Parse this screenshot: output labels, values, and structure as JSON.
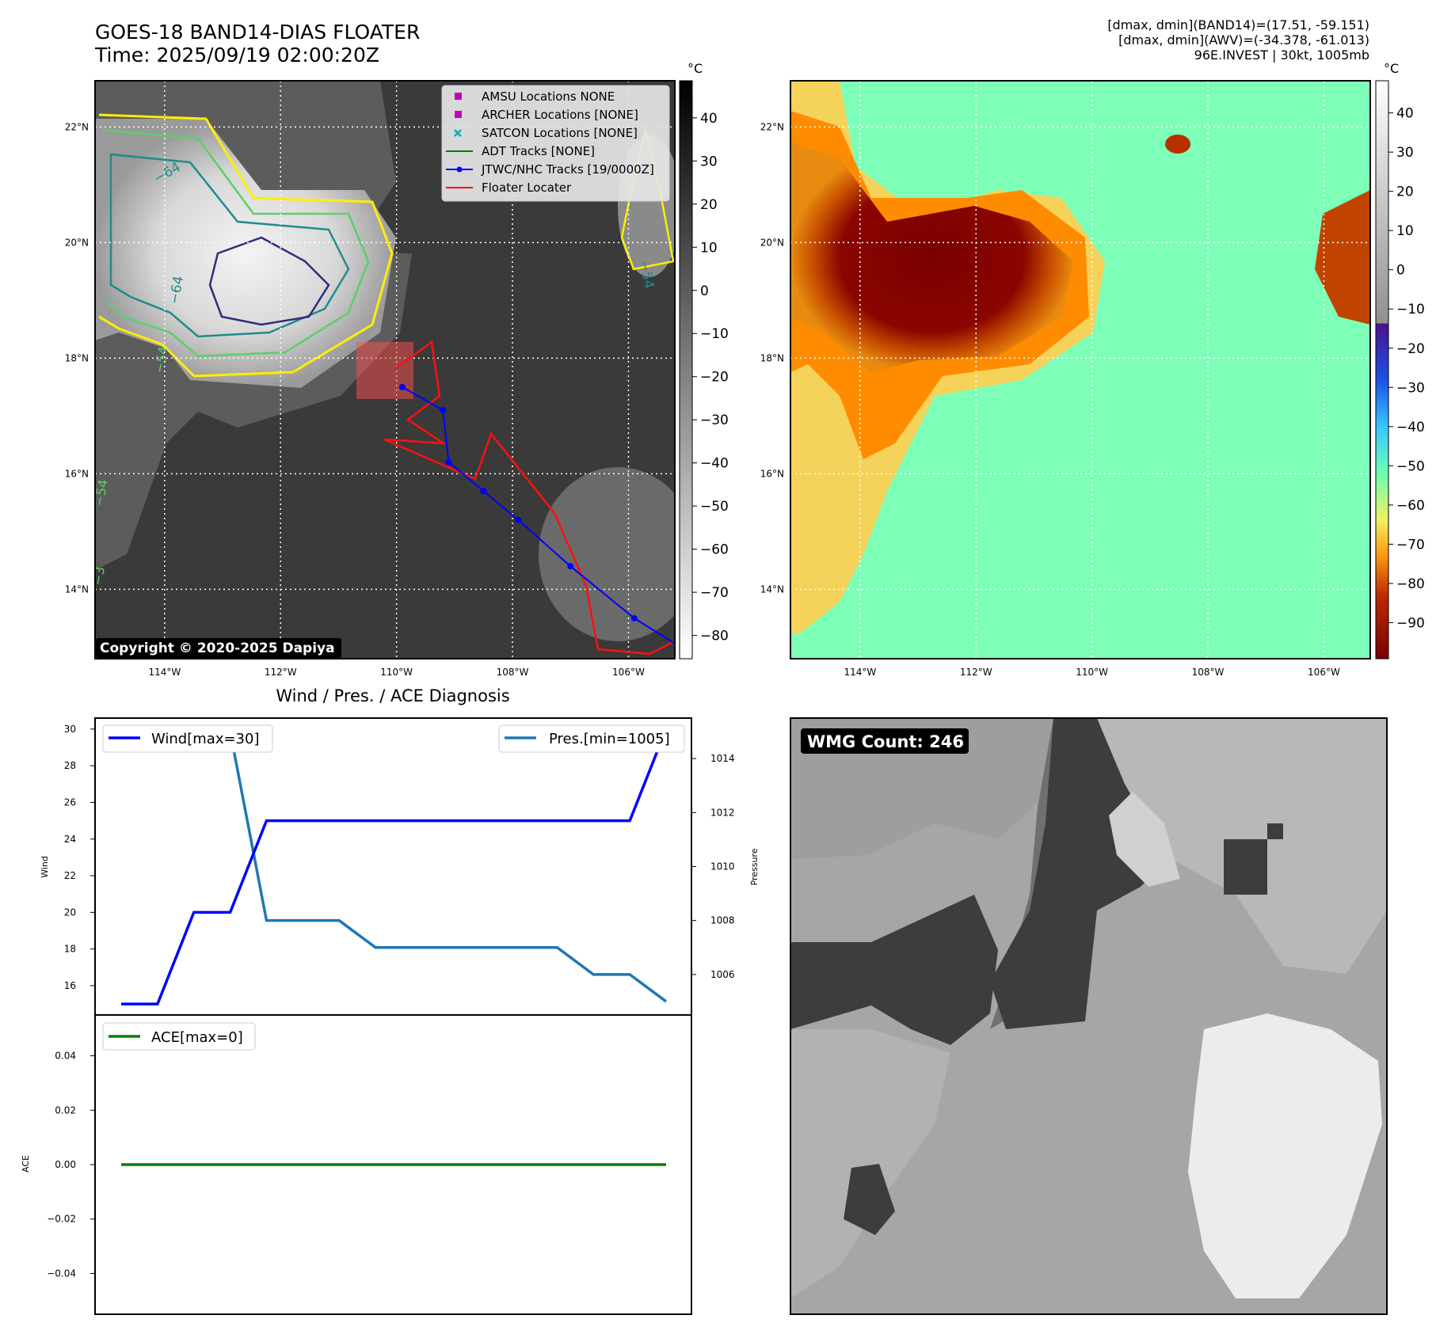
{
  "header": {
    "title": "GOES-18 BAND14-DIAS FLOATER",
    "time": "Time: 2025/09/19 02:00:20Z",
    "info_line1": "[dmax, dmin](BAND14)=(17.51, -59.151)",
    "info_line2": "[dmax, dmin](AWV)=(-34.378, -61.013)",
    "info_line3": "96E.INVEST | 30kt, 1005mb"
  },
  "copyright": "Copyright © 2020-2025 Dapiya",
  "map": {
    "lat_labels": [
      "22°N",
      "20°N",
      "18°N",
      "16°N",
      "14°N"
    ],
    "lon_labels": [
      "114°W",
      "112°W",
      "110°W",
      "108°W",
      "106°W"
    ],
    "colorbar_unit": "°C",
    "ir_colorbar_ticks": [
      "40",
      "30",
      "20",
      "10",
      "0",
      "−10",
      "−20",
      "−30",
      "−40",
      "−50",
      "−60",
      "−70",
      "−80"
    ],
    "awv_colorbar_ticks": [
      "40",
      "30",
      "20",
      "10",
      "0",
      "−10",
      "−20",
      "−30",
      "−40",
      "−50",
      "−60",
      "−70",
      "−80",
      "−90"
    ],
    "contour_labels": [
      "−64",
      "−64",
      "−54",
      "−54",
      "−54",
      "−3"
    ],
    "legend": [
      {
        "label": "AMSU Locations NONE",
        "color": "#c000c0",
        "marker": "square"
      },
      {
        "label": "ARCHER Locations [NONE]",
        "color": "#c000c0",
        "marker": "square"
      },
      {
        "label": "SATCON Locations [NONE]",
        "color": "#00b0b0",
        "marker": "x"
      },
      {
        "label": "ADT Tracks [NONE]",
        "color": "#008000",
        "marker": "line"
      },
      {
        "label": "JTWC/NHC Tracks [19/0000Z]",
        "color": "#0000ff",
        "marker": "line-dot"
      },
      {
        "label": "Floater Locater",
        "color": "#ff0000",
        "marker": "line"
      }
    ],
    "track_points": [
      [
        -109.9,
        17.5
      ],
      [
        -109.2,
        17.1
      ],
      [
        -109.1,
        16.2
      ],
      [
        -108.5,
        15.7
      ],
      [
        -107.9,
        15.2
      ],
      [
        -107.0,
        14.4
      ],
      [
        -105.9,
        13.5
      ],
      [
        -105.1,
        13.0
      ]
    ]
  },
  "diagnosis": {
    "title": "Wind / Pres. / ACE Diagnosis",
    "wind_ylabel": "Wind",
    "pres_ylabel": "Pressure",
    "ace_ylabel": "ACE",
    "wind_legend": "Wind[max=30]",
    "pres_legend": "Pres.[min=1005]",
    "ace_legend": "ACE[max=0]",
    "wind_ticks": [
      "30",
      "28",
      "26",
      "24",
      "22",
      "20",
      "18",
      "16"
    ],
    "pres_ticks": [
      "1014",
      "1012",
      "1010",
      "1008",
      "1006"
    ],
    "ace_ticks": [
      "0.04",
      "0.02",
      "0.00",
      "−0.02",
      "−0.04"
    ],
    "colors": {
      "wind": "#0000ff",
      "pres": "#1f77b4",
      "ace": "#008000"
    }
  },
  "chart_data": {
    "type": "line",
    "x": [
      0,
      1,
      2,
      3,
      4,
      5,
      6,
      7,
      8,
      9,
      10,
      11,
      12,
      13,
      14,
      15
    ],
    "series": [
      {
        "name": "Wind[max=30]",
        "values": [
          15,
          15,
          20,
          20,
          25,
          25,
          25,
          25,
          25,
          25,
          25,
          25,
          25,
          25,
          25,
          30
        ]
      },
      {
        "name": "Pres.[min=1005]",
        "values": [
          1015,
          1015,
          1015,
          1015,
          1008,
          1008,
          1008,
          1007,
          1007,
          1007,
          1007,
          1007,
          1007,
          1006,
          1006,
          1005
        ]
      },
      {
        "name": "ACE[max=0]",
        "values": [
          0,
          0,
          0,
          0,
          0,
          0,
          0,
          0,
          0,
          0,
          0,
          0,
          0,
          0,
          0,
          0
        ]
      }
    ],
    "wind_ylim": [
      14.4,
      30.6
    ],
    "pres_ylim": [
      1004.5,
      1015.5
    ],
    "ace_ylim": [
      -0.055,
      0.055
    ],
    "xlabel": "",
    "ylabel": "Wind",
    "y2label": "Pressure",
    "title": "Wind / Pres. / ACE Diagnosis"
  },
  "wmg": {
    "label": "WMG Count: 246"
  }
}
